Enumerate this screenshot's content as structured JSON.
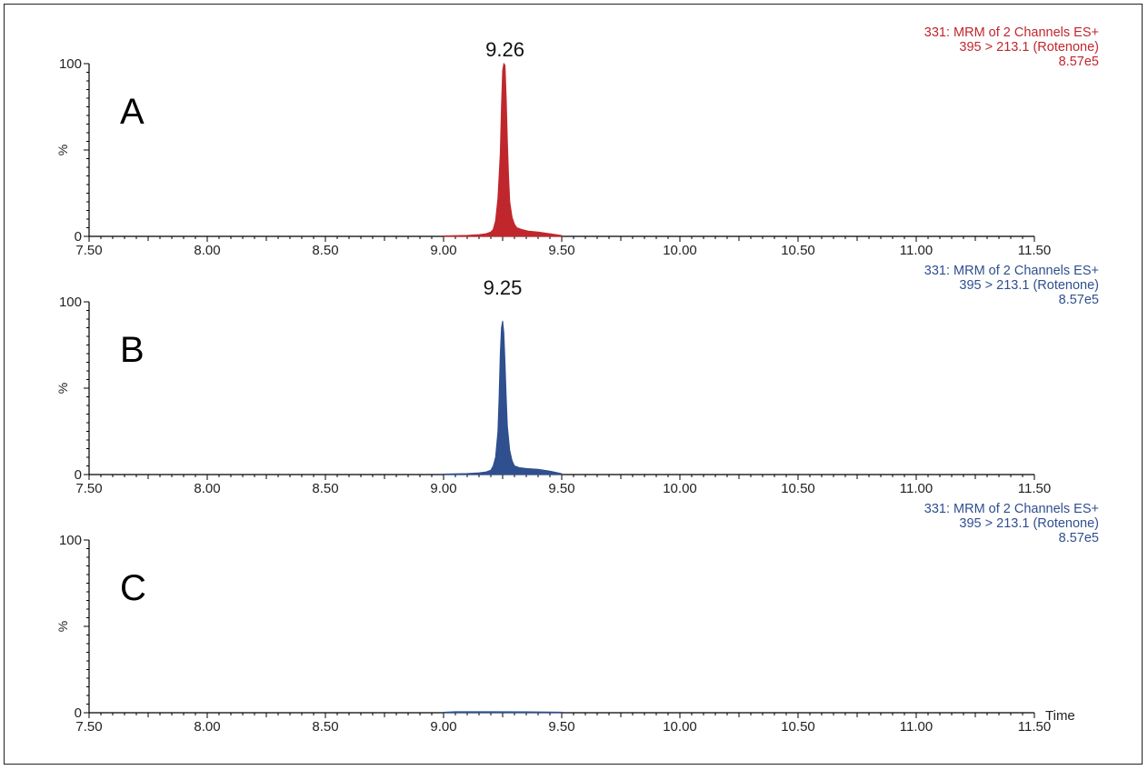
{
  "chart_data": [
    {
      "type": "area",
      "panel_label": "A",
      "color": "#c0272d",
      "header": [
        "331: MRM of 2 Channels ES+",
        "395 > 213.1 (Rotenone)",
        "8.57e5"
      ],
      "xlim": [
        7.5,
        11.5
      ],
      "ylim": [
        0,
        100
      ],
      "xticks": [
        7.5,
        8.0,
        8.5,
        9.0,
        9.5,
        10.0,
        10.5,
        11.0,
        11.5
      ],
      "xtick_labels": [
        "7.50",
        "8.00",
        "8.50",
        "9.00",
        "9.50",
        "10.00",
        "10.50",
        "11.00",
        "11.50"
      ],
      "yticks": [
        0,
        100
      ],
      "ytick_labels": [
        "0",
        "100"
      ],
      "ylabel": "%",
      "xlabel": "",
      "peak_label": "9.26",
      "peak_x": 9.26,
      "x": [
        9.0,
        9.1,
        9.15,
        9.18,
        9.2,
        9.21,
        9.22,
        9.23,
        9.24,
        9.245,
        9.25,
        9.255,
        9.26,
        9.265,
        9.27,
        9.275,
        9.28,
        9.29,
        9.3,
        9.31,
        9.33,
        9.36,
        9.4,
        9.45,
        9.5
      ],
      "y": [
        0.3,
        0.6,
        1.0,
        1.5,
        2.5,
        4,
        9,
        22,
        48,
        75,
        96,
        100,
        99,
        80,
        55,
        35,
        20,
        11,
        7,
        5,
        4,
        3,
        2.5,
        1.5,
        0.5
      ]
    },
    {
      "type": "area",
      "panel_label": "B",
      "color": "#2f4f8f",
      "header": [
        "331: MRM of 2 Channels ES+",
        "395 > 213.1 (Rotenone)",
        "8.57e5"
      ],
      "xlim": [
        7.5,
        11.5
      ],
      "ylim": [
        0,
        100
      ],
      "xticks": [
        7.5,
        8.0,
        8.5,
        9.0,
        9.5,
        10.0,
        10.5,
        11.0,
        11.5
      ],
      "xtick_labels": [
        "7.50",
        "8.00",
        "8.50",
        "9.00",
        "9.50",
        "10.00",
        "10.50",
        "11.00",
        "11.50"
      ],
      "yticks": [
        0,
        100
      ],
      "ytick_labels": [
        "0",
        "100"
      ],
      "ylabel": "%",
      "xlabel": "",
      "peak_label": "9.25",
      "peak_x": 9.25,
      "x": [
        9.0,
        9.1,
        9.15,
        9.18,
        9.2,
        9.21,
        9.22,
        9.23,
        9.235,
        9.24,
        9.245,
        9.25,
        9.255,
        9.26,
        9.265,
        9.27,
        9.28,
        9.29,
        9.3,
        9.32,
        9.35,
        9.4,
        9.45,
        9.5
      ],
      "y": [
        0.3,
        0.6,
        1.0,
        1.5,
        2.5,
        5,
        10,
        25,
        45,
        70,
        85,
        89,
        82,
        65,
        45,
        28,
        14,
        8,
        5,
        4,
        3.5,
        3,
        2,
        0.5
      ]
    },
    {
      "type": "area",
      "panel_label": "C",
      "color": "#2f4f8f",
      "header": [
        "331: MRM of 2 Channels ES+",
        "395 > 213.1 (Rotenone)",
        "8.57e5"
      ],
      "xlim": [
        7.5,
        11.5
      ],
      "ylim": [
        0,
        100
      ],
      "xticks": [
        7.5,
        8.0,
        8.5,
        9.0,
        9.5,
        10.0,
        10.5,
        11.0,
        11.5
      ],
      "xtick_labels": [
        "7.50",
        "8.00",
        "8.50",
        "9.00",
        "9.50",
        "10.00",
        "10.50",
        "11.00",
        "11.50"
      ],
      "yticks": [
        0,
        100
      ],
      "ytick_labels": [
        "0",
        "100"
      ],
      "ylabel": "%",
      "xlabel": "Time",
      "peak_label": "",
      "x": [
        9.0,
        9.05,
        9.2,
        9.35,
        9.5
      ],
      "y": [
        0.3,
        0.6,
        0.6,
        0.5,
        0.3
      ]
    }
  ]
}
